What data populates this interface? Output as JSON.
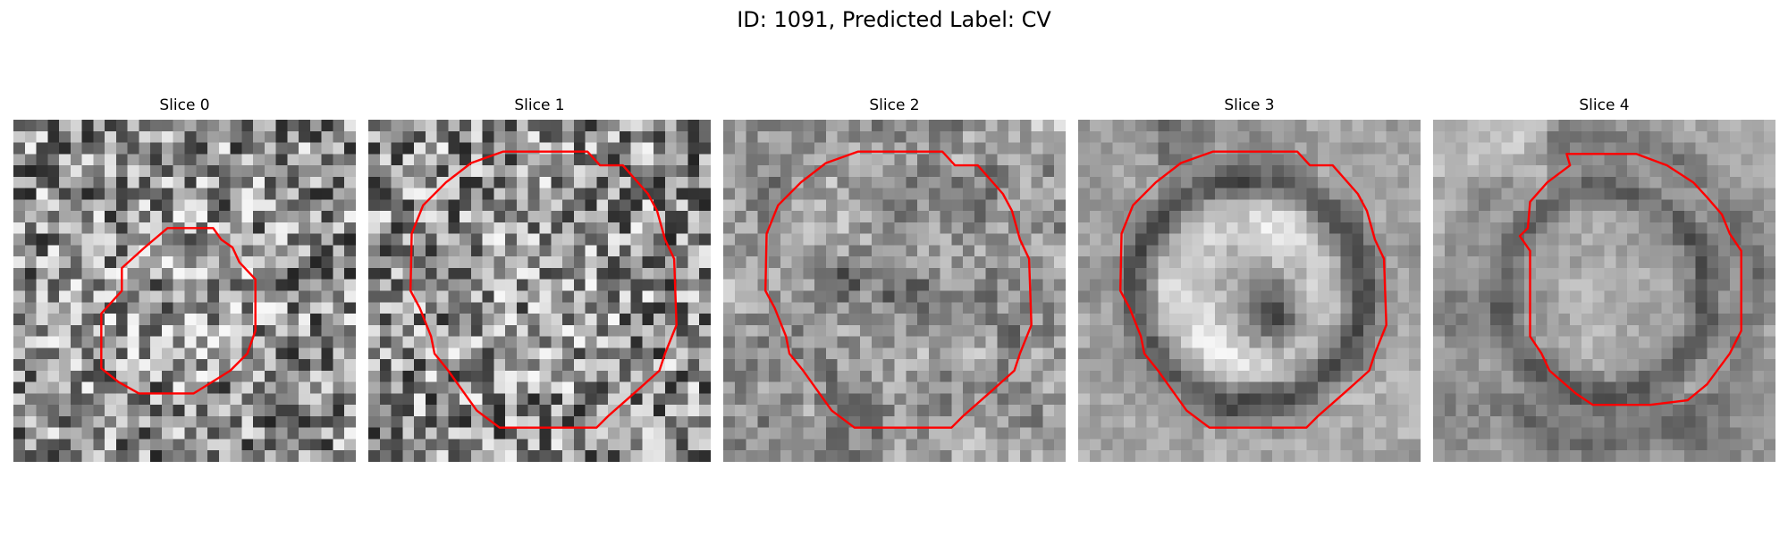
{
  "figure": {
    "title": "ID: 1091, Predicted Label: CV"
  },
  "panels": [
    {
      "label": "Slice 0",
      "style": "speckle",
      "seed": 11,
      "ring": false,
      "contour": "small"
    },
    {
      "label": "Slice 1",
      "style": "speckle",
      "seed": 23,
      "ring": false,
      "contour": "large"
    },
    {
      "label": "Slice 2",
      "style": "blob",
      "seed": 37,
      "ring": false,
      "contour": "large"
    },
    {
      "label": "Slice 3",
      "style": "ring",
      "seed": 41,
      "ring": true,
      "contour": "large"
    },
    {
      "label": "Slice 4",
      "style": "ring-soft",
      "seed": 53,
      "ring": true,
      "contour": "narrow"
    }
  ],
  "colors": {
    "contour": "#ff0000",
    "background": "#ffffff"
  }
}
